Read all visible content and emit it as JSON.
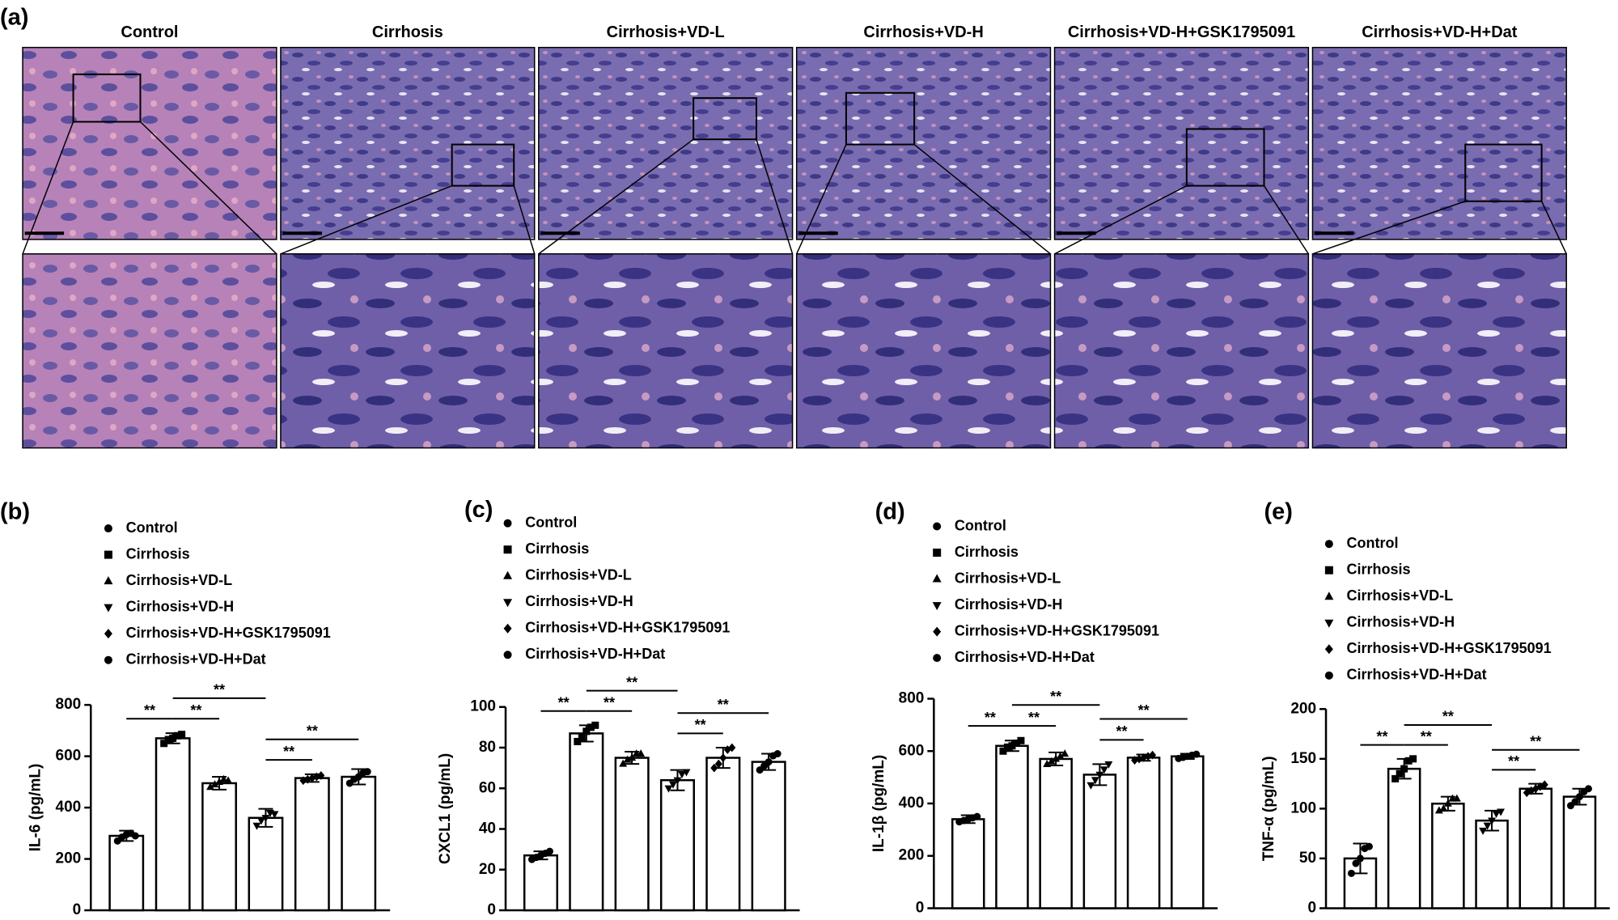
{
  "panel_a": {
    "label": "(a)",
    "columns": [
      "Control",
      "Cirrhosis",
      "Cirrhosis+VD-L",
      "Cirrhosis+VD-H",
      "Cirrhosis+VD-H+GSK1795091",
      "Cirrhosis+VD-H+Dat"
    ]
  },
  "chart_data": [
    {
      "type": "bar",
      "label": "(b)",
      "ylabel": "IL-6 (pg/mL)",
      "categories": [
        "Control",
        "Cirrhosis",
        "Cirrhosis+VD-L",
        "Cirrhosis+VD-H",
        "Cirrhosis+VD-H+GSK1795091",
        "Cirrhosis+VD-H+Dat"
      ],
      "markers": [
        "circle",
        "square",
        "triangle-up",
        "triangle-down",
        "diamond",
        "circle"
      ],
      "values": [
        290,
        670,
        495,
        360,
        515,
        520
      ],
      "errors": [
        20,
        20,
        25,
        35,
        15,
        30
      ],
      "points": [
        [
          270,
          285,
          295,
          300,
          290
        ],
        [
          650,
          665,
          670,
          680,
          685
        ],
        [
          480,
          490,
          500,
          510,
          505
        ],
        [
          330,
          350,
          360,
          380,
          375
        ],
        [
          505,
          510,
          515,
          520,
          525
        ],
        [
          495,
          510,
          520,
          535,
          540
        ]
      ],
      "comparisons": [
        {
          "from": 0,
          "to": 1,
          "label": "**"
        },
        {
          "from": 1,
          "to": 2,
          "label": "**"
        },
        {
          "from": 1,
          "to": 3,
          "label": "**"
        },
        {
          "from": 3,
          "to": 4,
          "label": "**"
        },
        {
          "from": 3,
          "to": 5,
          "label": "**"
        }
      ],
      "ylim": [
        0,
        800
      ],
      "yticks": [
        0,
        200,
        400,
        600,
        800
      ],
      "color": "#ffffff",
      "edgecolor": "#000000"
    },
    {
      "type": "bar",
      "label": "(c)",
      "ylabel": "CXCL1 (pg/mL)",
      "categories": [
        "Control",
        "Cirrhosis",
        "Cirrhosis+VD-L",
        "Cirrhosis+VD-H",
        "Cirrhosis+VD-H+GSK1795091",
        "Cirrhosis+VD-H+Dat"
      ],
      "markers": [
        "circle",
        "square",
        "triangle-up",
        "triangle-down",
        "diamond",
        "circle"
      ],
      "values": [
        27,
        87,
        75,
        64,
        75,
        73
      ],
      "errors": [
        2,
        4,
        3,
        5,
        5,
        4
      ],
      "points": [
        [
          25,
          26,
          27,
          28,
          29
        ],
        [
          83,
          85,
          88,
          90,
          91
        ],
        [
          72,
          74,
          75,
          77,
          77
        ],
        [
          60,
          62,
          64,
          67,
          68
        ],
        [
          70,
          72,
          75,
          79,
          80
        ],
        [
          69,
          71,
          73,
          76,
          77
        ]
      ],
      "comparisons": [
        {
          "from": 0,
          "to": 1,
          "label": "**"
        },
        {
          "from": 1,
          "to": 2,
          "label": "**"
        },
        {
          "from": 1,
          "to": 3,
          "label": "**"
        },
        {
          "from": 3,
          "to": 4,
          "label": "**"
        },
        {
          "from": 3,
          "to": 5,
          "label": "**"
        }
      ],
      "ylim": [
        0,
        100
      ],
      "yticks": [
        0,
        20,
        40,
        60,
        80,
        100
      ],
      "color": "#ffffff",
      "edgecolor": "#000000"
    },
    {
      "type": "bar",
      "label": "(d)",
      "ylabel": "IL-1β (pg/mL)",
      "categories": [
        "Control",
        "Cirrhosis",
        "Cirrhosis+VD-L",
        "Cirrhosis+VD-H",
        "Cirrhosis+VD-H+GSK1795091",
        "Cirrhosis+VD-H+Dat"
      ],
      "markers": [
        "circle",
        "square",
        "triangle-up",
        "triangle-down",
        "diamond",
        "circle"
      ],
      "values": [
        340,
        620,
        570,
        510,
        575,
        580
      ],
      "errors": [
        15,
        20,
        25,
        40,
        12,
        10
      ],
      "points": [
        [
          330,
          335,
          340,
          345,
          350
        ],
        [
          600,
          615,
          620,
          630,
          640
        ],
        [
          550,
          560,
          570,
          580,
          590
        ],
        [
          470,
          490,
          510,
          530,
          550
        ],
        [
          565,
          570,
          575,
          580,
          585
        ],
        [
          572,
          576,
          580,
          584,
          588
        ]
      ],
      "comparisons": [
        {
          "from": 0,
          "to": 1,
          "label": "**"
        },
        {
          "from": 1,
          "to": 2,
          "label": "**"
        },
        {
          "from": 1,
          "to": 3,
          "label": "**"
        },
        {
          "from": 3,
          "to": 4,
          "label": "**"
        },
        {
          "from": 3,
          "to": 5,
          "label": "**"
        }
      ],
      "ylim": [
        0,
        800
      ],
      "yticks": [
        0,
        200,
        400,
        600,
        800
      ],
      "color": "#ffffff",
      "edgecolor": "#000000"
    },
    {
      "type": "bar",
      "label": "(e)",
      "ylabel": "TNF-α (pg/mL)",
      "categories": [
        "Control",
        "Cirrhosis",
        "Cirrhosis+VD-L",
        "Cirrhosis+VD-H",
        "Cirrhosis+VD-H+GSK1795091",
        "Cirrhosis+VD-H+Dat"
      ],
      "markers": [
        "circle",
        "square",
        "triangle-up",
        "triangle-down",
        "diamond",
        "circle"
      ],
      "values": [
        50,
        140,
        105,
        88,
        120,
        112
      ],
      "errors": [
        15,
        10,
        7,
        10,
        5,
        8
      ],
      "points": [
        [
          35,
          45,
          50,
          60,
          62
        ],
        [
          130,
          135,
          140,
          148,
          150
        ],
        [
          98,
          100,
          105,
          110,
          110
        ],
        [
          78,
          83,
          88,
          95,
          97
        ],
        [
          116,
          118,
          120,
          122,
          124
        ],
        [
          103,
          107,
          112,
          117,
          120
        ]
      ],
      "comparisons": [
        {
          "from": 0,
          "to": 1,
          "label": "**"
        },
        {
          "from": 1,
          "to": 2,
          "label": "**"
        },
        {
          "from": 1,
          "to": 3,
          "label": "**"
        },
        {
          "from": 3,
          "to": 4,
          "label": "**"
        },
        {
          "from": 3,
          "to": 5,
          "label": "**"
        }
      ],
      "ylim": [
        0,
        200
      ],
      "yticks": [
        0,
        50,
        100,
        150,
        200
      ],
      "color": "#ffffff",
      "edgecolor": "#000000"
    }
  ]
}
